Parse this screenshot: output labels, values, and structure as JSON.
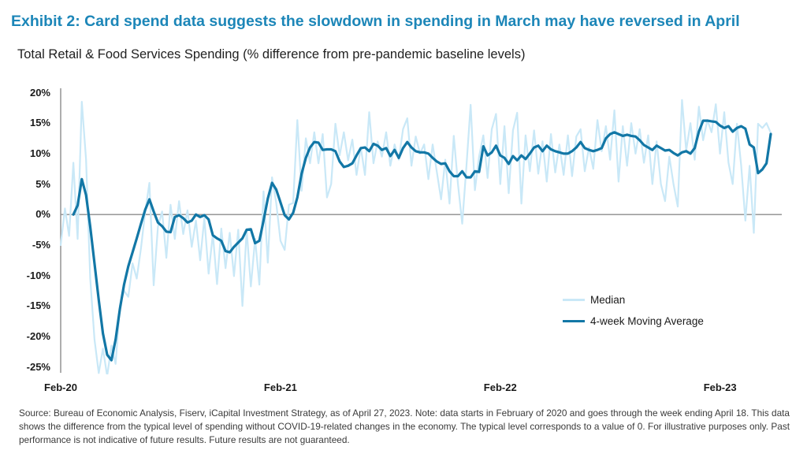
{
  "page": {
    "exhibit_title": "Exhibit 2: Card spend data suggests the slowdown in spending in March may have reversed in April",
    "chart_title": "Total Retail & Food Services Spending (% difference from pre-pandemic baseline levels)",
    "source_note": "Source: Bureau of Economic Analysis, Fiserv, iCapital Investment Strategy, as of April 27, 2023. Note: data starts in February of 2020 and goes through the week ending April 18. This data shows the difference from the typical level of spending without COVID-19-related changes in the economy. The typical level corresponds to a value of 0. For illustrative purposes only. Past performance is not indicative of future results. Future results are not guaranteed."
  },
  "colors": {
    "title": "#1c86b8",
    "median_line": "#c9e8f7",
    "moving_average_line": "#1277a6",
    "axis": "#8c8c8c",
    "tick_text": "#1a1a1a"
  },
  "chart_data": {
    "type": "line",
    "title": "Total Retail & Food Services Spending (% difference from pre-pandemic baseline levels)",
    "xlabel": "",
    "ylabel": "% difference from pre-pandemic baseline",
    "x_unit": "weekly, February 2020 through week ending April 18, 2023",
    "x_tick_labels": [
      "Feb-20",
      "Feb-21",
      "Feb-22",
      "Feb-23"
    ],
    "x_tick_weeks": [
      0,
      52,
      104,
      156
    ],
    "y_tick_labels": [
      "20%",
      "15%",
      "10%",
      "5%",
      "0%",
      "-5%",
      "-10%",
      "-15%",
      "-20%",
      "-25%"
    ],
    "y_tick_values": [
      20,
      15,
      10,
      5,
      0,
      -5,
      -10,
      -15,
      -20,
      -25
    ],
    "ylim": [
      -25,
      20
    ],
    "grid": "zero-line-only",
    "legend_position": "inside-right",
    "series": [
      {
        "name": "Median",
        "color": "#c9e8f7",
        "width": 2.2,
        "values": [
          -5.0,
          1.0,
          -3.5,
          8.5,
          -4.0,
          18.5,
          9.0,
          -10.5,
          -20.5,
          -26.0,
          -22.0,
          -26.5,
          -21.5,
          -24.5,
          -15.0,
          -12.5,
          -13.5,
          -8.0,
          -10.5,
          -5.5,
          0.5,
          5.2,
          -11.6,
          -2.0,
          0.5,
          -7.1,
          1.6,
          -4.0,
          2.2,
          -3.2,
          0.7,
          -5.3,
          -1.0,
          -7.5,
          -0.6,
          -9.7,
          -3.2,
          -11.4,
          -2.3,
          -8.8,
          -3.0,
          -10.1,
          -2.5,
          -15.0,
          -2.5,
          -11.8,
          -4.0,
          -11.5,
          3.8,
          -7.9,
          6.1,
          1.9,
          -4.3,
          -5.8,
          1.6,
          1.9,
          15.5,
          3.9,
          12.5,
          8.4,
          13.5,
          8.4,
          13.2,
          2.8,
          5.0,
          14.9,
          9.7,
          13.5,
          8.9,
          12.3,
          6.5,
          11.0,
          6.5,
          16.8,
          8.4,
          12.0,
          9.5,
          13.5,
          8.0,
          11.5,
          9.0,
          14.0,
          15.8,
          8.0,
          12.8,
          10.0,
          11.5,
          5.8,
          11.5,
          7.0,
          2.5,
          9.0,
          1.8,
          12.9,
          5.0,
          -1.5,
          8.0,
          18.0,
          4.0,
          9.5,
          13.0,
          6.0,
          14.0,
          16.5,
          5.0,
          14.5,
          3.5,
          13.8,
          16.7,
          1.8,
          13.0,
          7.1,
          13.8,
          6.7,
          12.0,
          5.4,
          13.2,
          6.9,
          11.5,
          6.5,
          13.0,
          6.3,
          12.8,
          14.0,
          7.1,
          11.0,
          7.5,
          15.5,
          10.4,
          14.5,
          9.0,
          17.1,
          5.4,
          14.5,
          8.0,
          15.0,
          10.0,
          14.0,
          8.5,
          13.0,
          5.0,
          12.0,
          5.0,
          2.2,
          9.5,
          5.0,
          1.3,
          18.8,
          10.5,
          15.0,
          9.0,
          17.7,
          12.2,
          15.5,
          13.5,
          18.1,
          10.0,
          16.8,
          8.5,
          5.0,
          14.9,
          8.0,
          -1.0,
          8.0,
          -3.0,
          14.9,
          14.2,
          15.0,
          13.4
        ]
      },
      {
        "name": "4-week Moving Average",
        "color": "#1277a6",
        "width": 3.2,
        "values": [
          null,
          null,
          null,
          0.0,
          1.5,
          5.8,
          3.2,
          -2.0,
          -8.0,
          -14.0,
          -19.5,
          -23.0,
          -23.9,
          -20.5,
          -15.5,
          -11.5,
          -8.5,
          -6.2,
          -3.9,
          -1.5,
          0.8,
          2.5,
          0.5,
          -1.3,
          -1.9,
          -2.8,
          -2.9,
          -0.4,
          -0.1,
          -0.6,
          -1.3,
          -1.0,
          0.0,
          -0.4,
          -0.1,
          -0.8,
          -3.4,
          -3.9,
          -4.3,
          -6.0,
          -6.2,
          -5.3,
          -4.6,
          -3.9,
          -2.5,
          -2.4,
          -4.7,
          -4.3,
          -1.0,
          2.6,
          5.2,
          4.1,
          2.0,
          -0.1,
          -0.8,
          0.3,
          2.8,
          6.7,
          9.3,
          11.0,
          11.9,
          11.8,
          10.6,
          10.7,
          10.7,
          10.4,
          8.7,
          7.8,
          8.0,
          8.4,
          9.7,
          10.9,
          11.0,
          10.4,
          11.6,
          11.3,
          10.6,
          10.9,
          9.6,
          10.6,
          9.3,
          10.9,
          11.9,
          11.0,
          10.4,
          10.2,
          10.2,
          10.0,
          9.3,
          8.7,
          8.3,
          8.4,
          7.1,
          6.3,
          6.3,
          7.1,
          6.1,
          6.1,
          7.1,
          7.0,
          11.2,
          9.7,
          10.2,
          11.3,
          9.7,
          9.3,
          8.3,
          9.6,
          8.9,
          9.7,
          9.1,
          10.0,
          11.0,
          11.3,
          10.4,
          11.3,
          10.7,
          10.4,
          10.2,
          10.0,
          10.0,
          10.4,
          11.0,
          11.9,
          10.9,
          10.6,
          10.4,
          10.6,
          10.9,
          12.5,
          13.2,
          13.5,
          13.2,
          12.9,
          13.1,
          12.9,
          12.8,
          12.2,
          11.4,
          11.0,
          10.6,
          11.3,
          10.9,
          10.5,
          10.6,
          10.1,
          9.7,
          10.2,
          10.4,
          10.0,
          10.9,
          13.6,
          15.4,
          15.4,
          15.3,
          15.2,
          14.6,
          14.2,
          14.5,
          13.6,
          14.2,
          14.5,
          14.1,
          11.5,
          11.0,
          6.8,
          7.4,
          8.4,
          13.2
        ]
      }
    ]
  }
}
